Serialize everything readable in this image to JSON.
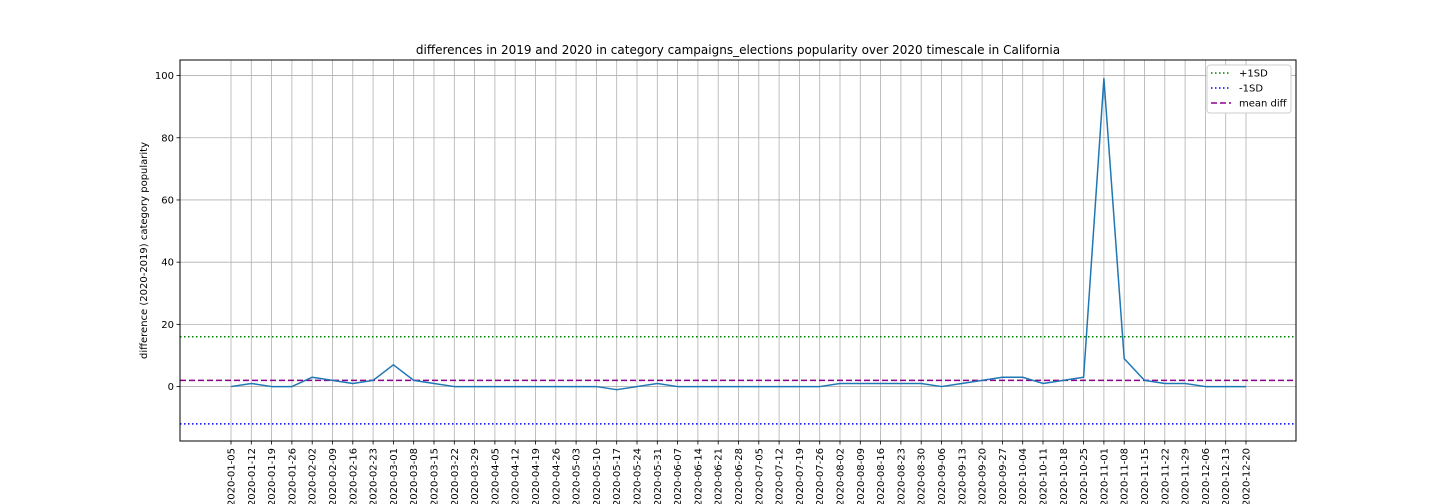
{
  "chart_data": {
    "type": "line",
    "title": "differences in 2019 and 2020 in category campaigns_elections popularity over 2020 timescale in California",
    "xlabel": "",
    "ylabel": "difference (2020-2019) category popularity",
    "ylim": [
      -17.5,
      105
    ],
    "yticks": [
      "0",
      "20",
      "40",
      "60",
      "80",
      "100"
    ],
    "grid": true,
    "legend_position": "top-right",
    "x": [
      "2020-01-05",
      "2020-01-12",
      "2020-01-19",
      "2020-01-26",
      "2020-02-02",
      "2020-02-09",
      "2020-02-16",
      "2020-02-23",
      "2020-03-01",
      "2020-03-08",
      "2020-03-15",
      "2020-03-22",
      "2020-03-29",
      "2020-04-05",
      "2020-04-12",
      "2020-04-19",
      "2020-04-26",
      "2020-05-03",
      "2020-05-10",
      "2020-05-17",
      "2020-05-24",
      "2020-05-31",
      "2020-06-07",
      "2020-06-14",
      "2020-06-21",
      "2020-06-28",
      "2020-07-05",
      "2020-07-12",
      "2020-07-19",
      "2020-07-26",
      "2020-08-02",
      "2020-08-09",
      "2020-08-16",
      "2020-08-23",
      "2020-08-30",
      "2020-09-06",
      "2020-09-13",
      "2020-09-20",
      "2020-09-27",
      "2020-10-04",
      "2020-10-11",
      "2020-10-18",
      "2020-10-25",
      "2020-11-01",
      "2020-11-08",
      "2020-11-15",
      "2020-11-22",
      "2020-11-29",
      "2020-12-06",
      "2020-12-13",
      "2020-12-20"
    ],
    "series": [
      {
        "values": [
          0,
          1,
          0,
          0,
          3,
          2,
          1,
          2,
          7,
          2,
          1,
          0,
          0,
          0,
          0,
          0,
          0,
          0,
          0,
          -1,
          0,
          1,
          0,
          0,
          0,
          0,
          0,
          0,
          0,
          0,
          1,
          1,
          1,
          1,
          1,
          0,
          1,
          2,
          3,
          3,
          1,
          2,
          3,
          99,
          9,
          2,
          1,
          1,
          0,
          0,
          0
        ],
        "color": "#1f77b4"
      }
    ],
    "reference_lines": [
      {
        "name": "+1SD",
        "value": 16,
        "color": "#008000",
        "style": "dotted"
      },
      {
        "name": "-1SD",
        "value": -12,
        "color": "#0000ff",
        "style": "dotted"
      },
      {
        "name": "mean diff",
        "value": 2,
        "color": "#8b008b",
        "style": "dashed"
      }
    ]
  }
}
